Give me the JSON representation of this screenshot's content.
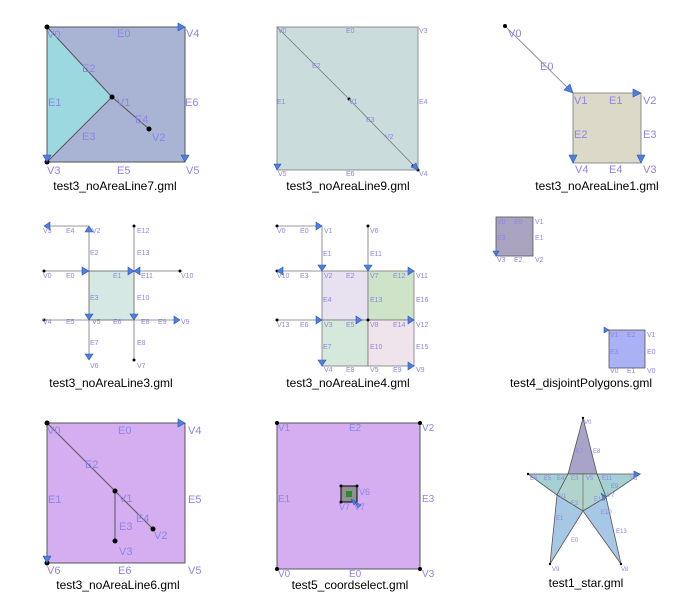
{
  "colors": {
    "label": "#8f84e6",
    "slate_blue": "#a9b4d4",
    "cyan": "#9cd8e0",
    "pale_teal": "#cbdcdc",
    "beige": "#dcd9c8",
    "light_mint": "#d6e8e4",
    "lavender": "#e8e2f0",
    "green": "#cfe3c8",
    "pink": "#f0e4ec",
    "grey_purple": "#a9a3bf",
    "bright_blue": "#aab1f4",
    "violet": "#d4aef0",
    "star_purple": "#a8a3c8",
    "star_teal": "#a4d0d4",
    "star_blue": "#a6c8e4",
    "star_green": "#b0d4cc"
  },
  "captions": [
    "test3_noAreaLine7.gml",
    "test3_noAreaLine9.gml",
    "test3_noAreaLine1.gml",
    "test3_noAreaLine3.gml",
    "test3_noAreaLine4.gml",
    "test4_disjointPolygons.gml",
    "test3_noAreaLine6.gml",
    "test5_coordselect.gml",
    "test1_star.gml"
  ],
  "p1": {
    "V0": "V0",
    "E0": "E0",
    "V4": "V4",
    "E2": "E2",
    "E1": "E1",
    "V1": "V1",
    "E6": "E6",
    "E4": "E4",
    "E3": "E3",
    "V2": "V2",
    "V3": "V3",
    "E5": "E5",
    "V5": "V5"
  },
  "p2": {
    "V0": "V0",
    "E0": "E0",
    "V3": "V3",
    "E2": "E2",
    "E1": "E1",
    "V1": "V1",
    "E4": "E4",
    "E3": "E3",
    "V2": "V2",
    "V5": "V5",
    "E6": "E6",
    "V4": "V4"
  },
  "p3": {
    "V0": "V0",
    "E0": "E0",
    "V1": "V1",
    "E1": "E1",
    "V2": "V2",
    "E2": "E2",
    "E3": "E3",
    "V4": "V4",
    "E4": "E4",
    "V3": "V3"
  },
  "p4": {
    "V3": "V3",
    "E4": "E4",
    "V2": "V2",
    "E12": "E12",
    "E2": "E2",
    "E13": "E13",
    "V0": "V0",
    "E0": "E0",
    "E1": "E1",
    "E11": "E11",
    "V10": "V10",
    "E3": "E3",
    "E10": "E10",
    "V4": "V4",
    "E5": "E5",
    "V5": "V5",
    "E6": "E6",
    "E8": "E8",
    "E9": "E9",
    "V9": "V9",
    "E7": "E7",
    "V6": "V6",
    "V7": "V7"
  },
  "p5": {
    "V0": "V0",
    "E0": "E0",
    "V1": "V1",
    "V6": "V6",
    "E1": "E1",
    "E11": "E11",
    "V10": "V10",
    "E3": "E3",
    "V2": "V2",
    "E2": "E2",
    "V7": "V7",
    "E12": "E12",
    "V11": "V11",
    "E4": "E4",
    "E13": "E13",
    "E16": "E16",
    "V13": "V13",
    "E6": "E6",
    "V3": "V3",
    "E5": "E5",
    "V8": "V8",
    "E14": "E14",
    "V12": "V12",
    "E7": "E7",
    "E10": "E10",
    "E15": "E15",
    "V4": "V4",
    "E8": "E8",
    "V5": "V5",
    "E9": "E9",
    "V9": "V9"
  },
  "p6": {
    "V0": "V0",
    "E0": "E0",
    "V1": "V1",
    "E3": "E3",
    "E1": "E1",
    "V3": "V3",
    "E2": "E2",
    "V2": "V2"
  },
  "p7": {
    "V0": "V0",
    "E0": "E0",
    "V4": "V4",
    "E2": "E2",
    "E1": "E1",
    "V1": "V1",
    "E5": "E5",
    "E3": "E3",
    "E4": "E4",
    "V2": "V2",
    "V3": "V3",
    "V6": "V6",
    "E6": "E6",
    "V5": "V5"
  },
  "p8": {
    "V1": "V1",
    "E2": "E2",
    "V2": "V2",
    "E1": "E1",
    "E3": "E3",
    "V0": "V0",
    "E0": "E0",
    "V3": "V3",
    "V6": "V6",
    "V7": "V7"
  },
  "p9": {
    "E7": "E7",
    "V0": "V0",
    "E8": "E8",
    "E6": "E6",
    "E5": "E5",
    "E4": "E4",
    "E3": "E3",
    "V5": "V5",
    "E11": "E11",
    "V6": "V6",
    "E9": "E9",
    "V1": "V1",
    "E12": "E12",
    "V7": "V7",
    "E2": "E2",
    "E10": "E10",
    "E1": "E1",
    "E0": "E0",
    "E13": "E13",
    "V9": "V9",
    "V8": "V8"
  }
}
